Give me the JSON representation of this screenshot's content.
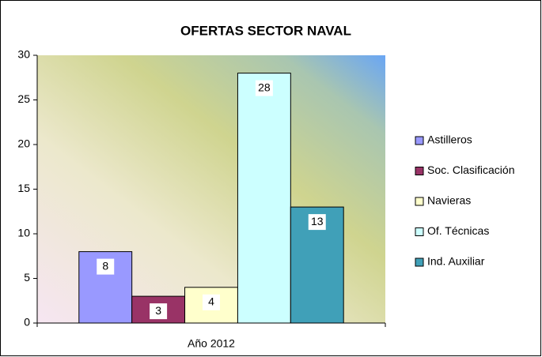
{
  "chart_data": {
    "type": "bar",
    "title": "OFERTAS SECTOR NAVAL",
    "categories": [
      "Año 2012"
    ],
    "series": [
      {
        "name": "Astilleros",
        "color": "#9999ff",
        "values": [
          8
        ]
      },
      {
        "name": "Soc. Clasificación",
        "color": "#993366",
        "values": [
          3
        ]
      },
      {
        "name": "Navieras",
        "color": "#ffffcc",
        "values": [
          4
        ]
      },
      {
        "name": "Of. Técnicas",
        "color": "#ccffff",
        "values": [
          28
        ]
      },
      {
        "name": "Ind. Auxiliar",
        "color": "#40a0b8",
        "values": [
          13
        ]
      }
    ],
    "ylim": [
      0,
      30
    ],
    "yticks": [
      0,
      5,
      10,
      15,
      20,
      25,
      30
    ],
    "legend": "right",
    "grid": false
  }
}
